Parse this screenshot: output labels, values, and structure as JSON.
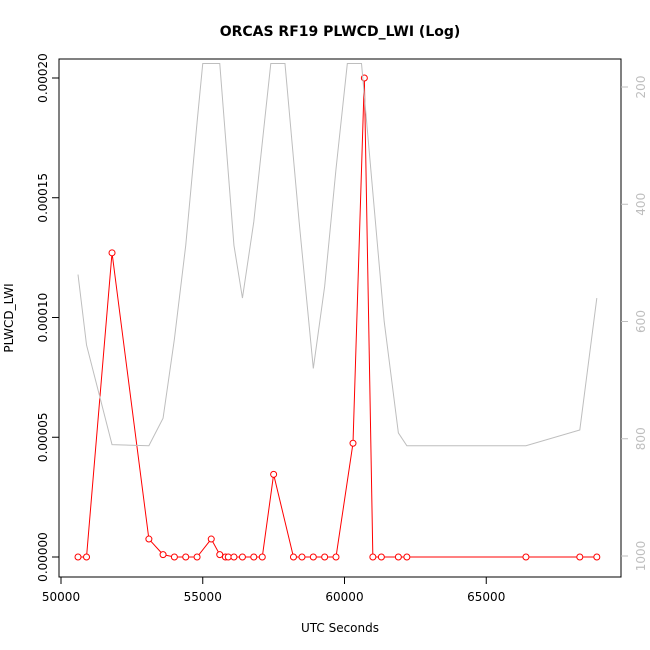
{
  "chart_data": {
    "type": "line",
    "title": "ORCAS RF19 PLWCD_LWI (Log)",
    "xlabel": "UTC Seconds",
    "ylabel": "PLWCD_LWI",
    "xlim": [
      50000,
      69000
    ],
    "ylim": [
      0,
      0.0002
    ],
    "x_ticks": [
      {
        "value": 50000,
        "label": "50000"
      },
      {
        "value": 55000,
        "label": "55000"
      },
      {
        "value": 60000,
        "label": "60000"
      },
      {
        "value": 65000,
        "label": "65000"
      }
    ],
    "y_ticks": [
      {
        "value": 0.0,
        "label": "0.00000"
      },
      {
        "value": 5e-05,
        "label": "0.00005"
      },
      {
        "value": 0.0001,
        "label": "0.00010"
      },
      {
        "value": 0.00015,
        "label": "0.00015"
      },
      {
        "value": 0.0002,
        "label": "0.00020"
      }
    ],
    "y2_axis": {
      "reversed": true,
      "lim": [
        160,
        1020
      ],
      "ticks": [
        {
          "value": 200,
          "label": "200"
        },
        {
          "value": 400,
          "label": "400"
        },
        {
          "value": 600,
          "label": "600"
        },
        {
          "value": 800,
          "label": "800"
        },
        {
          "value": 1000,
          "label": "1000"
        }
      ]
    },
    "series": [
      {
        "role": "primary",
        "color": "#ff0000",
        "marker": "open-circle",
        "x": [
          50600,
          50900,
          51800,
          53100,
          53600,
          54000,
          54400,
          54800,
          55300,
          55600,
          55800,
          55900,
          56100,
          56400,
          56800,
          57100,
          57500,
          58200,
          58500,
          58900,
          59300,
          59700,
          60300,
          60700,
          61000,
          61300,
          61900,
          62200,
          66400,
          68300,
          68900
        ],
        "y": [
          0.0,
          0.0,
          0.000127,
          7.5e-06,
          1e-06,
          0.0,
          0.0,
          0.0,
          7.5e-06,
          1e-06,
          0.0,
          0.0,
          0.0,
          0.0,
          0.0,
          0.0,
          3.45e-05,
          0.0,
          0.0,
          0.0,
          0.0,
          0.0,
          4.75e-05,
          0.0002,
          0.0,
          0.0,
          0.0,
          0.0,
          0.0,
          0.0,
          0.0
        ]
      },
      {
        "role": "secondary",
        "color": "#bebebe",
        "marker": "none",
        "x": [
          50600,
          50900,
          51800,
          53100,
          53600,
          54000,
          54400,
          54800,
          55000,
          55600,
          56100,
          56400,
          56800,
          57400,
          57900,
          58400,
          58900,
          59300,
          59700,
          60100,
          60600,
          61400,
          61900,
          62200,
          66400,
          68300,
          68900
        ],
        "y": [
          520,
          640,
          810,
          812,
          765,
          630,
          470,
          260,
          160,
          160,
          470,
          560,
          430,
          160,
          160,
          430,
          680,
          540,
          340,
          160,
          160,
          600,
          790,
          812,
          812,
          785,
          560
        ]
      }
    ]
  }
}
